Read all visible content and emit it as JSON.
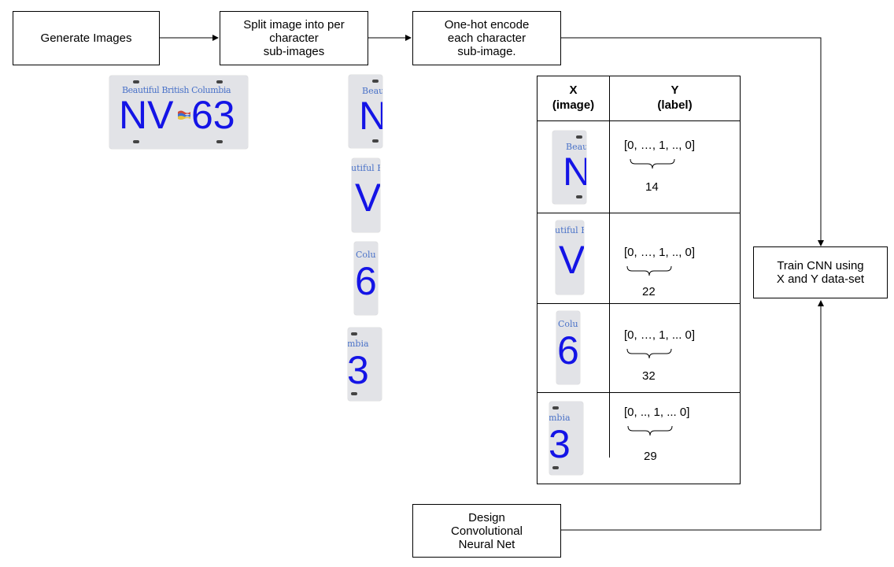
{
  "boxes": {
    "generate": "Generate Images",
    "split": "Split image into per\ncharacter\nsub-images",
    "encode": "One-hot encode\neach character\nsub-image.",
    "train": "Train CNN using\nX and Y data-set",
    "design": "Design\nConvolutional\nNeural Net"
  },
  "plate": {
    "tagline": "Beautiful British Columbia",
    "chars_left": "NV",
    "chars_right": "63",
    "flag": "flag-icon"
  },
  "sub_images": [
    {
      "char": "N",
      "tag": "Beau"
    },
    {
      "char": "V",
      "tag": "utiful B"
    },
    {
      "char": "6",
      "tag": "Colu"
    },
    {
      "char": "3",
      "tag": "mbia"
    }
  ],
  "table": {
    "col_x": "X\n(image)",
    "col_y": "Y\n(label)",
    "rows": [
      {
        "vector": "[0, …, 1, .., 0]",
        "index": "14"
      },
      {
        "vector": "[0, …, 1, .., 0]",
        "index": "22"
      },
      {
        "vector": "[0, …, 1, ... 0]",
        "index": "32"
      },
      {
        "vector": "[0, .., 1, ... 0]",
        "index": "29"
      }
    ]
  }
}
